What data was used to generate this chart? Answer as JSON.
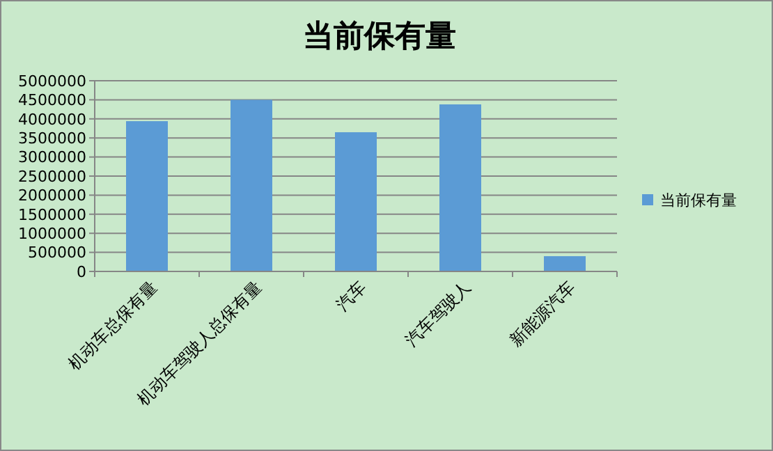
{
  "chart_data": {
    "type": "bar",
    "title": "当前保有量",
    "categories": [
      "机动车总保有量",
      "机动车驾驶人总保有量",
      "汽车",
      "汽车驾驶人",
      "新能源汽车"
    ],
    "series": [
      {
        "name": "当前保有量",
        "color": "#5b9bd5",
        "values": [
          3940000,
          4500000,
          3650000,
          4380000,
          400000
        ]
      }
    ],
    "ylim": [
      0,
      5000000
    ],
    "yticks": [
      0,
      500000,
      1000000,
      1500000,
      2000000,
      2500000,
      3000000,
      3500000,
      4000000,
      4500000,
      5000000
    ],
    "grid": "y",
    "legend": "right"
  }
}
